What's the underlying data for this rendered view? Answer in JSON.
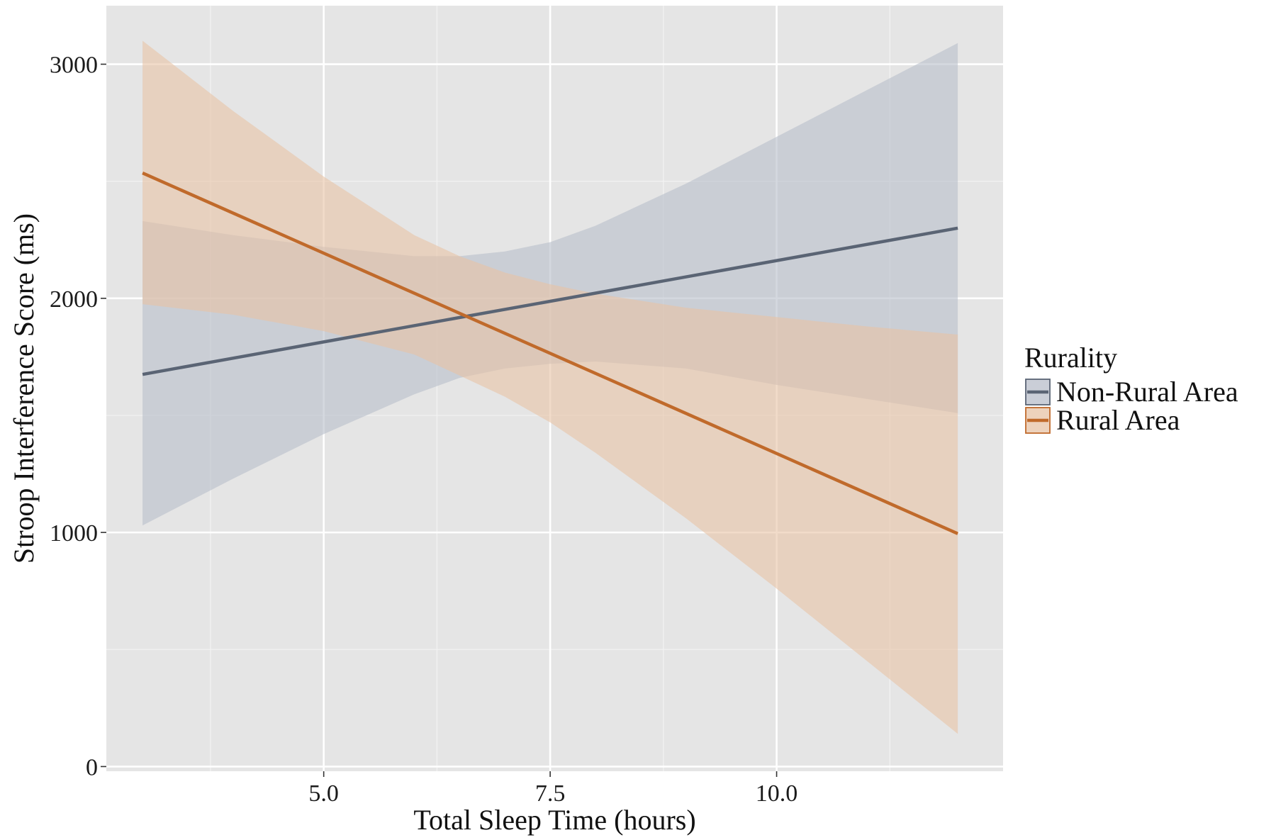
{
  "chart_data": {
    "type": "line",
    "title": "",
    "xlabel": "Total Sleep Time (hours)",
    "ylabel": "Stroop Interference Score (ms)",
    "xlim": [
      2.6,
      12.5
    ],
    "ylim": [
      -20,
      3250
    ],
    "x_ticks": [
      5.0,
      7.5,
      10.0
    ],
    "x_tick_labels": [
      "5.0",
      "7.5",
      "10.0"
    ],
    "x_minor_ticks": [
      3.75,
      6.25,
      8.75,
      11.25
    ],
    "y_ticks": [
      0,
      1000,
      2000,
      3000
    ],
    "y_tick_labels": [
      "0",
      "1000",
      "2000",
      "3000"
    ],
    "y_minor_ticks": [
      500,
      1500,
      2500
    ],
    "grid": true,
    "panel_background": "#e5e5e5",
    "legend": {
      "title": "Rurality",
      "placement": "right"
    },
    "series": [
      {
        "name": "Non-Rural Area",
        "color": "#5a6474",
        "band_color": "#b8bec9",
        "x": [
          3,
          12
        ],
        "y": [
          1675,
          2300
        ],
        "ci_x": [
          3,
          4,
          5,
          6,
          6.5,
          7,
          7.5,
          8,
          9,
          10,
          11,
          12
        ],
        "ci_lower": [
          1030,
          1230,
          1420,
          1590,
          1660,
          1700,
          1720,
          1730,
          1700,
          1630,
          1570,
          1510
        ],
        "ci_upper": [
          2330,
          2270,
          2220,
          2180,
          2180,
          2200,
          2240,
          2310,
          2490,
          2690,
          2890,
          3090
        ]
      },
      {
        "name": "Rural Area",
        "color": "#c06a2b",
        "band_color": "#e7c3a5",
        "x": [
          3,
          12
        ],
        "y": [
          2535,
          995
        ],
        "ci_x": [
          3,
          4,
          5,
          6,
          6.5,
          7,
          7.5,
          8,
          9,
          10,
          11,
          12
        ],
        "ci_lower": [
          1975,
          1930,
          1860,
          1760,
          1670,
          1580,
          1470,
          1340,
          1060,
          760,
          450,
          140
        ],
        "ci_upper": [
          3100,
          2800,
          2520,
          2270,
          2180,
          2110,
          2060,
          2020,
          1960,
          1920,
          1880,
          1845
        ]
      }
    ]
  }
}
